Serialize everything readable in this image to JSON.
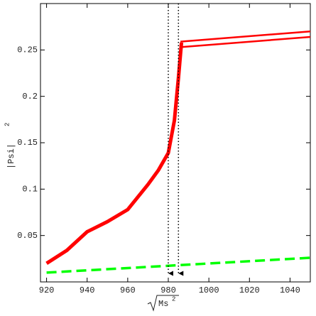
{
  "chart_data": {
    "type": "line",
    "x_label": {
      "radicand": "Ms",
      "exponent": "2"
    },
    "y_label": {
      "base": "|Psi|",
      "exponent": "2"
    },
    "xlim": [
      917,
      1050
    ],
    "ylim": [
      0,
      0.3
    ],
    "xticks": [
      920,
      940,
      960,
      980,
      1000,
      1020,
      1040
    ],
    "yticks": [
      0.05,
      0.1,
      0.15,
      0.2,
      0.25
    ],
    "series": [
      {
        "color": "#ff0000",
        "width": 5,
        "dashed": false,
        "x": [
          920,
          930,
          940,
          950,
          960,
          970,
          975,
          980,
          983,
          985,
          986,
          986.5
        ],
        "values": [
          0.02,
          0.034,
          0.054,
          0.065,
          0.078,
          0.105,
          0.12,
          0.139,
          0.174,
          0.22,
          0.245,
          0.258
        ]
      },
      {
        "color": "#ff0000",
        "width": 2.5,
        "dashed": false,
        "x": [
          986,
          1050
        ],
        "values": [
          0.259,
          0.27
        ]
      },
      {
        "color": "#ff0000",
        "width": 2.5,
        "dashed": false,
        "x": [
          986,
          1050
        ],
        "values": [
          0.253,
          0.264
        ]
      },
      {
        "color": "#00ff00",
        "width": 3.5,
        "dashed": true,
        "x": [
          920,
          1050
        ],
        "values": [
          0.01,
          0.026
        ]
      }
    ],
    "markers": [
      980,
      985
    ]
  }
}
